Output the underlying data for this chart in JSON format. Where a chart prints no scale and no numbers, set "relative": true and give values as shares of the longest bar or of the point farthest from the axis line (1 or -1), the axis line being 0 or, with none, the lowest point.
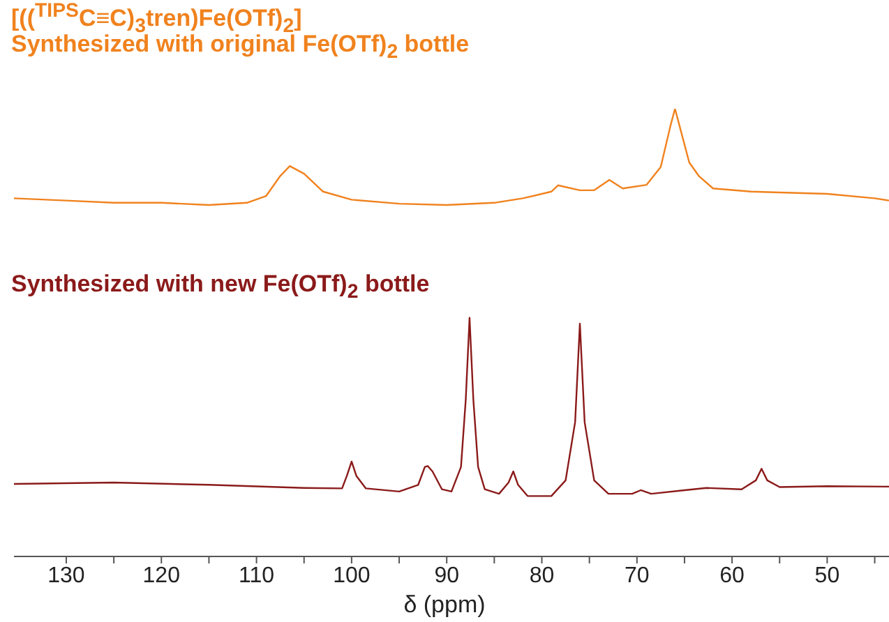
{
  "chart_data": {
    "type": "line",
    "title": "[(($^{TIPS}$C≡C)$_{3}$tren)Fe(OTf)$_{2}$]",
    "xlabel": "δ (ppm)",
    "relative": true,
    "legend": false,
    "marker": "none",
    "xlim": [
      135.5,
      43.5
    ],
    "xticks": [
      130,
      {
        "value": 125,
        "label": null
      },
      120,
      {
        "value": 115,
        "label": null
      },
      110,
      {
        "value": 105,
        "label": null
      },
      100,
      {
        "value": 95,
        "label": null
      },
      90,
      {
        "value": 85,
        "label": null
      },
      80,
      {
        "value": 75,
        "label": null
      },
      70,
      {
        "value": 65,
        "label": null
      },
      60,
      {
        "value": 55,
        "label": null
      },
      50,
      {
        "value": 45,
        "label": null
      }
    ],
    "series": [
      {
        "name": "Synthesized with original Fe(OTf)$_{2}$ bottle",
        "color": "#f0821e",
        "x": [
          135.5,
          130,
          125,
          120,
          115,
          111,
          109,
          107.5,
          106.5,
          105,
          103,
          100,
          95,
          90,
          85,
          82,
          79,
          78.3,
          76,
          74.5,
          72.9,
          71.5,
          69,
          67.5,
          66.5,
          66,
          65.5,
          64.5,
          63.5,
          62,
          58,
          55,
          50,
          45,
          43.5
        ],
        "values": [
          0.8,
          0.795,
          0.79,
          0.79,
          0.785,
          0.79,
          0.805,
          0.85,
          0.872,
          0.855,
          0.815,
          0.797,
          0.788,
          0.785,
          0.79,
          0.8,
          0.815,
          0.829,
          0.818,
          0.818,
          0.841,
          0.822,
          0.83,
          0.87,
          0.96,
          1,
          0.96,
          0.88,
          0.85,
          0.822,
          0.815,
          0.813,
          0.81,
          0.8,
          0.795
        ]
      },
      {
        "name": "Synthesized with new Fe(OTf)$_{2}$ bottle",
        "color": "#8b1a1a",
        "x": [
          135.5,
          125,
          115,
          105,
          101,
          100.5,
          100,
          99.5,
          98.5,
          95,
          93,
          92.3,
          92,
          91.5,
          90.5,
          89.5,
          88.5,
          88,
          87.6,
          87.2,
          86.7,
          86,
          84.5,
          83.5,
          83,
          82.5,
          81.5,
          79,
          77.5,
          76.5,
          76,
          75.5,
          74.5,
          73,
          70.5,
          69.6,
          68.5,
          65,
          62.7,
          59,
          57.5,
          56.9,
          56.3,
          55,
          50,
          43.5
        ],
        "values": [
          0.162,
          0.165,
          0.16,
          0.153,
          0.152,
          0.18,
          0.212,
          0.18,
          0.152,
          0.145,
          0.16,
          0.2,
          0.202,
          0.19,
          0.15,
          0.145,
          0.2,
          0.35,
          0.533,
          0.35,
          0.2,
          0.15,
          0.14,
          0.165,
          0.19,
          0.16,
          0.135,
          0.135,
          0.17,
          0.3,
          0.52,
          0.3,
          0.17,
          0.14,
          0.14,
          0.148,
          0.14,
          0.148,
          0.153,
          0.15,
          0.17,
          0.196,
          0.17,
          0.155,
          0.157,
          0.156
        ]
      }
    ]
  }
}
